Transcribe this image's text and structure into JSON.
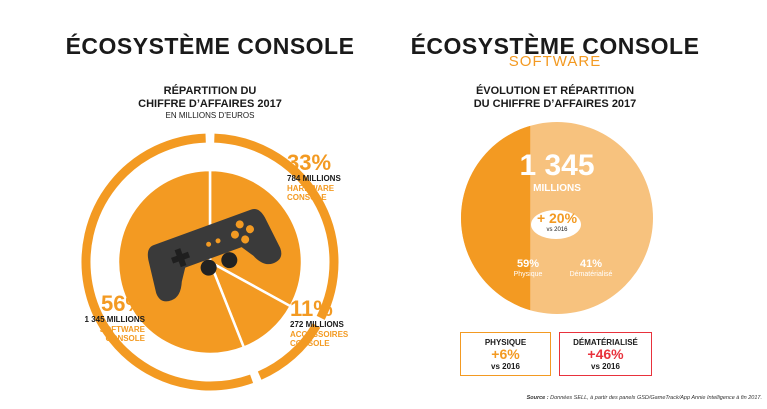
{
  "left": {
    "title": "ÉCOSYSTÈME CONSOLE",
    "subtitle_line1": "RÉPARTITION DU",
    "subtitle_line2": "CHIFFRE D’AFFAIRES 2017",
    "unit": "EN MILLIONS D’EUROS",
    "segments": [
      {
        "pct": "33%",
        "value": "784 MILLIONS",
        "label1": "HARDWARE",
        "label2": "CONSOLE"
      },
      {
        "pct": "11%",
        "value": "272 MILLIONS",
        "label1": "ACCESSOIRES",
        "label2": "CONSOLE"
      },
      {
        "pct": "56%",
        "value": "1 345 MILLIONS",
        "label1": "SOFTWARE",
        "label2": "CONSOLE"
      }
    ]
  },
  "right": {
    "title": "ÉCOSYSTÈME CONSOLE",
    "title_sub": "SOFTWARE",
    "subtitle_line1": "ÉVOLUTION ET RÉPARTITION",
    "subtitle_line2": "DU CHIFFRE D’AFFAIRES 2017",
    "total_value": "1 345",
    "total_unit": "MILLIONS",
    "growth": "+ 20%",
    "growth_vs": "vs 2016",
    "phys_pct": "59%",
    "phys_label": "Physique",
    "dem_pct": "41%",
    "dem_label": "Dématérialisé",
    "box_phys": {
      "title": "PHYSIQUE",
      "value": "+6%",
      "vs": "vs 2016"
    },
    "box_dem": {
      "title": "DÉMATÉRIALISÉ",
      "value": "+46%",
      "vs": "vs 2016"
    }
  },
  "source_label": "Source :",
  "source_text": "Données SELL, à partir des panels GSD/GameTrack/App Annie Intelligence à fin 2017.",
  "colors": {
    "orange": "#f39a22",
    "light_orange": "#f7c27e",
    "red": "#e8323c",
    "dark": "#1a1a1a",
    "controller": "#3a3a3a"
  },
  "icons": [
    "gamepad-icon"
  ],
  "chart_data": [
    {
      "type": "pie",
      "title": "RÉPARTITION DU CHIFFRE D’AFFAIRES 2017",
      "subtitle": "EN MILLIONS D’EUROS",
      "categories": [
        "HARDWARE CONSOLE",
        "ACCESSOIRES CONSOLE",
        "SOFTWARE CONSOLE"
      ],
      "values": [
        784,
        272,
        1345
      ],
      "percentages": [
        33,
        11,
        56
      ]
    },
    {
      "type": "pie",
      "title": "ÉVOLUTION ET RÉPARTITION DU CHIFFRE D’AFFAIRES 2017",
      "categories": [
        "Physique",
        "Dématérialisé"
      ],
      "percentages": [
        59,
        41
      ],
      "total": 1345,
      "growth_vs_2016": {
        "total": 20,
        "Physique": 6,
        "Dématérialisé": 46
      }
    }
  ]
}
